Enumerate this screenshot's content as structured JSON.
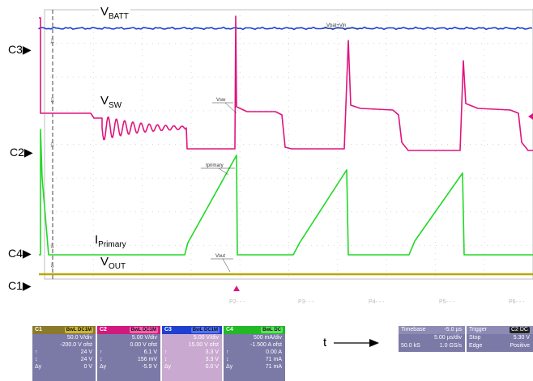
{
  "chart_data": {
    "type": "line",
    "time_axis_label": "t",
    "series": [
      {
        "name": "VBATT",
        "label_main": "V",
        "label_sub": "BATT",
        "color": "#1e3fd0",
        "trace_label": "Vbat+Vin"
      },
      {
        "name": "VSW",
        "label_main": "V",
        "label_sub": "SW",
        "color": "#e0147f",
        "trace_label": "Vsw"
      },
      {
        "name": "IPrimary",
        "label_main": "I",
        "label_sub": "Primary",
        "color": "#22d826",
        "trace_label": "Iprimary"
      },
      {
        "name": "VOUT",
        "label_main": "V",
        "label_sub": "OUT",
        "color": "#b8a800",
        "trace_label": "Vout"
      }
    ],
    "channel_markers": [
      "C3",
      "C2",
      "C4",
      "C1"
    ],
    "marker_glyph": "▶",
    "grid_bottom_labels": [
      "P2- - -",
      "P3- - -",
      "P4- - -",
      "P5- - -",
      "P6- - -"
    ],
    "grid": true
  },
  "channels": [
    {
      "id": "C1",
      "header_color": "#8a7a2a",
      "badge_text": "BwL DC1M",
      "badge_color": "#c9b63a",
      "body_color": "#7b79a6",
      "rows": [
        [
          "",
          "50.0 V/div"
        ],
        [
          "",
          "-200.0 V ofst"
        ],
        [
          "↑",
          "24 V"
        ],
        [
          "↕",
          "24 V"
        ],
        [
          "Δy",
          "0 V"
        ]
      ]
    },
    {
      "id": "C2",
      "header_color": "#d11a7f",
      "badge_text": "BwL DC1M",
      "badge_color": "#f062ab",
      "body_color": "#7b79a6",
      "rows": [
        [
          "",
          "5.00 V/div"
        ],
        [
          "",
          "0.00 V ofst"
        ],
        [
          "↑",
          "6.1 V"
        ],
        [
          "↕",
          "156 mV"
        ],
        [
          "Δy",
          "-5.9 V"
        ]
      ]
    },
    {
      "id": "C3",
      "header_color": "#1e3fd0",
      "badge_text": "BwL DC1M",
      "badge_color": "#5472ee",
      "body_color": "#c9a9cf",
      "rows": [
        [
          "",
          "5.00 V/div"
        ],
        [
          "",
          "15.00 V ofst"
        ],
        [
          "↑",
          "3.3 V"
        ],
        [
          "↕",
          "3.3 V"
        ],
        [
          "Δy",
          "0.0 V"
        ]
      ]
    },
    {
      "id": "C4",
      "header_color": "#22b826",
      "badge_text": "BwL DC",
      "badge_color": "#5ee061",
      "body_color": "#7b79a6",
      "rows": [
        [
          "",
          "500 mA/div"
        ],
        [
          "",
          "-1.500 A ofst"
        ],
        [
          "↑",
          "0.00 A"
        ],
        [
          "↕",
          "71 mA"
        ],
        [
          "Δy",
          "71 mA"
        ]
      ]
    }
  ],
  "timebase": {
    "label": "Timebase",
    "position": "-5.0 µs",
    "div": "5.00 µs/div",
    "samples": "50.0 kS",
    "rate": "1.0 GS/s"
  },
  "trigger": {
    "label": "Trigger",
    "badge": "C2 DC",
    "mode": "Stop",
    "level": "5.30 V",
    "type": "Edge",
    "slope": "Positive"
  }
}
